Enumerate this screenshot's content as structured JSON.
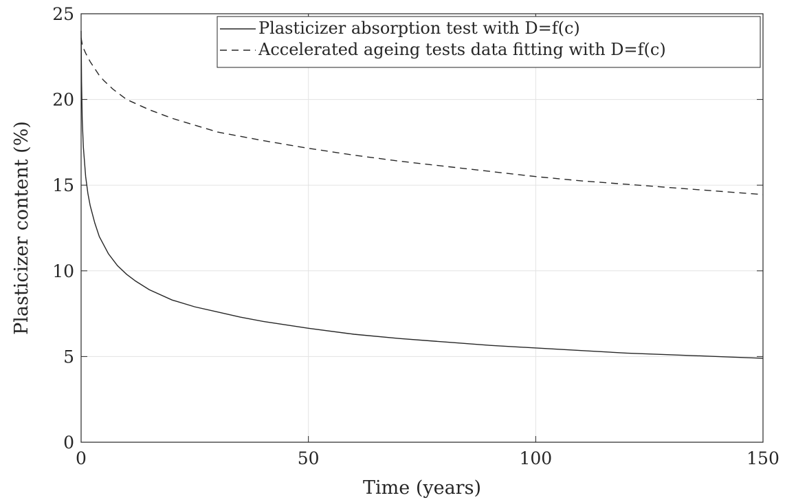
{
  "chart_data": {
    "type": "line",
    "title": "",
    "xlabel": "Time (years)",
    "ylabel": "Plasticizer content (%)",
    "xlim": [
      0,
      150
    ],
    "ylim": [
      0,
      25
    ],
    "xticks": [
      0,
      50,
      100,
      150
    ],
    "yticks": [
      0,
      5,
      10,
      15,
      20,
      25
    ],
    "grid": true,
    "legend_position": "top-right",
    "series": [
      {
        "name": "Plasticizer absorption test with D=f(c)",
        "style": "solid",
        "color": "#262626",
        "x": [
          0,
          0.1,
          0.25,
          0.5,
          1,
          1.5,
          2,
          3,
          4,
          5,
          6,
          8,
          10,
          12,
          15,
          20,
          25,
          30,
          35,
          40,
          45,
          50,
          60,
          70,
          80,
          90,
          100,
          110,
          120,
          130,
          140,
          150
        ],
        "y": [
          24.0,
          21.0,
          18.8,
          17.2,
          15.5,
          14.5,
          13.8,
          12.8,
          12.0,
          11.5,
          11.0,
          10.3,
          9.8,
          9.4,
          8.9,
          8.3,
          7.9,
          7.6,
          7.3,
          7.05,
          6.85,
          6.65,
          6.3,
          6.05,
          5.85,
          5.65,
          5.5,
          5.35,
          5.2,
          5.1,
          5.0,
          4.9
        ]
      },
      {
        "name": "Accelerated ageing tests data fitting with D=f(c)",
        "style": "dashed",
        "color": "#262626",
        "x": [
          0,
          0.25,
          0.5,
          1,
          2,
          3,
          4,
          5,
          7,
          10,
          15,
          20,
          25,
          30,
          40,
          50,
          60,
          70,
          80,
          90,
          100,
          110,
          120,
          130,
          140,
          150
        ],
        "y": [
          23.6,
          23.2,
          23.0,
          22.7,
          22.2,
          21.8,
          21.4,
          21.1,
          20.6,
          20.0,
          19.4,
          18.9,
          18.5,
          18.1,
          17.6,
          17.15,
          16.75,
          16.4,
          16.1,
          15.8,
          15.5,
          15.25,
          15.05,
          14.85,
          14.65,
          14.45
        ]
      }
    ]
  }
}
